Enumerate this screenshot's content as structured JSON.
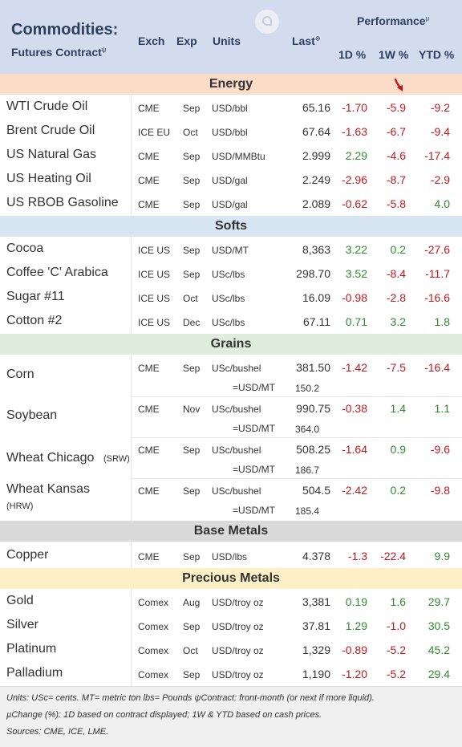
{
  "header": {
    "title": "Commodities:",
    "subtitle": "Futures Contract",
    "subtitle_sup": "ψ",
    "col_exch": "Exch",
    "col_exp": "Exp",
    "col_units": "Units",
    "col_last": "Last",
    "col_last_sup": "⊕",
    "col_performance": "Performance",
    "col_performance_sup": "µ",
    "col_1d": "1D %",
    "col_1w": "1W %",
    "col_ytd": "YTD %",
    "logo_icon": "wifi-badge-icon"
  },
  "sections": {
    "energy": "Energy",
    "softs": "Softs",
    "grains": "Grains",
    "base_metals": "Base Metals",
    "precious_metals": "Precious Metals"
  },
  "energy": [
    {
      "name": "WTI Crude Oil",
      "exch": "CME",
      "exp": "Sep",
      "units": "USD/bbl",
      "last": "65.16",
      "d1": "-1.70",
      "w1": "-5.9",
      "ytd": "-9.2"
    },
    {
      "name": "Brent Crude Oil",
      "exch": "ICE EU",
      "exp": "Oct",
      "units": "USD/bbl",
      "last": "67.64",
      "d1": "-1.63",
      "w1": "-6.7",
      "ytd": "-9.4"
    },
    {
      "name": "US Natural Gas",
      "exch": "CME",
      "exp": "Sep",
      "units": "USD/MMBtu",
      "last": "2.999",
      "d1": "2.29",
      "w1": "-4.6",
      "ytd": "-17.4"
    },
    {
      "name": "US Heating Oil",
      "exch": "CME",
      "exp": "Sep",
      "units": "USD/gal",
      "last": "2.249",
      "d1": "-2.96",
      "w1": "-8.7",
      "ytd": "-2.9"
    },
    {
      "name": "US RBOB Gasoline",
      "exch": "CME",
      "exp": "Sep",
      "units": "USD/gal",
      "last": "2.089",
      "d1": "-0.62",
      "w1": "-5.8",
      "ytd": "4.0"
    }
  ],
  "softs": [
    {
      "name": "Cocoa",
      "exch": "ICE US",
      "exp": "Sep",
      "units": "USD/MT",
      "last": "8,363",
      "d1": "3.22",
      "w1": "0.2",
      "ytd": "-27.6"
    },
    {
      "name": "Coffee 'C' Arabica",
      "exch": "ICE US",
      "exp": "Sep",
      "units": "USc/lbs",
      "last": "298.70",
      "d1": "3.52",
      "w1": "-8.4",
      "ytd": "-11.7"
    },
    {
      "name": "Sugar #11",
      "exch": "ICE US",
      "exp": "Oct",
      "units": "USc/lbs",
      "last": "16.09",
      "d1": "-0.98",
      "w1": "-2.8",
      "ytd": "-16.6"
    },
    {
      "name": "Cotton #2",
      "exch": "ICE US",
      "exp": "Dec",
      "units": "USc/lbs",
      "last": "67.11",
      "d1": "0.71",
      "w1": "3.2",
      "ytd": "1.8"
    }
  ],
  "grains": [
    {
      "name": "Corn",
      "note": "",
      "exch": "CME",
      "exp": "Sep",
      "units": "USc/bushel",
      "last": "381.50",
      "d1": "-1.42",
      "w1": "-7.5",
      "ytd": "-16.4",
      "units2": "=USD/MT",
      "last2": "150.2"
    },
    {
      "name": "Soybean",
      "note": "",
      "exch": "CME",
      "exp": "Nov",
      "units": "USc/bushel",
      "last": "990.75",
      "d1": "-0.38",
      "w1": "1.4",
      "ytd": "1.1",
      "units2": "=USD/MT",
      "last2": "364.0"
    },
    {
      "name": "Wheat Chicago",
      "note": "(SRW)",
      "exch": "CME",
      "exp": "Sep",
      "units": "USc/bushel",
      "last": "508.25",
      "d1": "-1.64",
      "w1": "0.9",
      "ytd": "-9.6",
      "units2": "=USD/MT",
      "last2": "186.7"
    },
    {
      "name": "Wheat Kansas",
      "note": "(HRW)",
      "exch": "CME",
      "exp": "Sep",
      "units": "USc/bushel",
      "last": "504.5",
      "d1": "-2.42",
      "w1": "0.2",
      "ytd": "-9.8",
      "units2": "=USD/MT",
      "last2": "185.4"
    }
  ],
  "base_metals": [
    {
      "name": "Copper",
      "exch": "CME",
      "exp": "Sep",
      "units": "USD/lbs",
      "last": "4.378",
      "d1": "-1.3",
      "w1": "-22.4",
      "ytd": "9.9"
    }
  ],
  "precious_metals": [
    {
      "name": "Gold",
      "exch": "Comex",
      "exp": "Aug",
      "units": "USD/troy oz",
      "last": "3,381",
      "d1": "0.19",
      "w1": "1.6",
      "ytd": "29.7"
    },
    {
      "name": "Silver",
      "exch": "Comex",
      "exp": "Sep",
      "units": "USD/troy oz",
      "last": "37.81",
      "d1": "1.29",
      "w1": "-1.0",
      "ytd": "30.5"
    },
    {
      "name": "Platinum",
      "exch": "Comex",
      "exp": "Oct",
      "units": "USD/troy oz",
      "last": "1,329",
      "d1": "-0.89",
      "w1": "-5.2",
      "ytd": "45.2"
    },
    {
      "name": "Palladium",
      "exch": "Comex",
      "exp": "Sep",
      "units": "USD/troy oz",
      "last": "1,190",
      "d1": "-1.20",
      "w1": "-5.2",
      "ytd": "29.4"
    }
  ],
  "footer": {
    "line1": "Units: USc= cents.   MT= metric ton    lbs= Pounds   ψContract: front-month (or next if more liquid).",
    "line2": "µChange (%): 1D based on contract displayed; 1W & YTD based on cash prices.",
    "line3": "Sources: CME, ICE, LME."
  },
  "colors": {
    "header_bg": "#d3dcef",
    "energy_bg": "#fbdcc8",
    "softs_bg": "#d7e5f3",
    "grains_bg": "#dfeedc",
    "base_metals_bg": "#dadada",
    "precious_metals_bg": "#fdefc6",
    "positive": "#2e8b2e",
    "negative": "#c0181e"
  },
  "annotations": {
    "down_arrow_icon": "red-down-arrow-icon"
  }
}
